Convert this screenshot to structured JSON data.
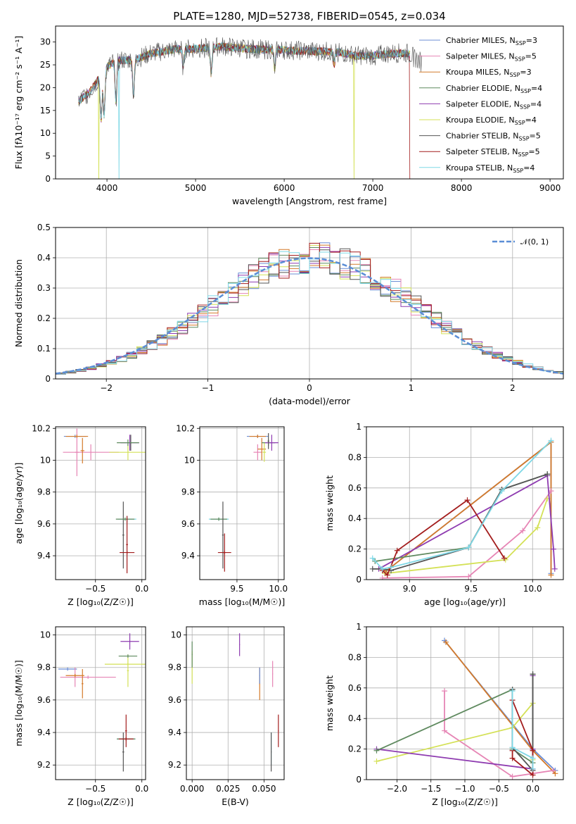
{
  "figure_title": "PLATE=1280, MJD=52738, FIBERID=0545, z=0.034",
  "colors": {
    "chabrier_miles": "#6b8ed6",
    "salpeter_miles": "#e685b5",
    "kroupa_miles": "#d47a2a",
    "chabrier_elodie": "#5f8a5f",
    "salpeter_elodie": "#8e3bb0",
    "kroupa_elodie": "#d4e157",
    "chabrier_stelib": "#555555",
    "salpeter_stelib": "#a31d1d",
    "kroupa_stelib": "#7fd8e6",
    "gaussian": "#5b8ed6"
  },
  "chart_data": [
    {
      "id": "spectrum",
      "type": "line",
      "title": "PLATE=1280, MJD=52738, FIBERID=0545, z=0.034",
      "xlabel": "wavelength [Angstrom, rest frame]",
      "ylabel": "Flux [fλ10⁻¹⁷ erg cm⁻² s⁻¹ A⁻¹]",
      "xlim": [
        3420,
        9150
      ],
      "ylim": [
        0,
        33.5
      ],
      "xticks": [
        4000,
        5000,
        6000,
        7000,
        8000,
        9000
      ],
      "yticks": [
        0,
        5,
        10,
        15,
        20,
        25,
        30
      ],
      "grid": false,
      "legend_position": "top-right",
      "legend": [
        {
          "label": "Chabrier MILES, N",
          "sub": "SSP",
          "suffix": "=3",
          "color": "chabrier_miles"
        },
        {
          "label": "Salpeter MILES, N",
          "sub": "SSP",
          "suffix": "=5",
          "color": "salpeter_miles"
        },
        {
          "label": "Kroupa MILES, N",
          "sub": "SSP",
          "suffix": "=3",
          "color": "kroupa_miles"
        },
        {
          "label": "Chabrier ELODIE, N",
          "sub": "SSP",
          "suffix": "=4",
          "color": "chabrier_elodie"
        },
        {
          "label": "Salpeter ELODIE, N",
          "sub": "SSP",
          "suffix": "=4",
          "color": "salpeter_elodie"
        },
        {
          "label": "Kroupa ELODIE, N",
          "sub": "SSP",
          "suffix": "=4",
          "color": "kroupa_elodie"
        },
        {
          "label": "Chabrier STELIB, N",
          "sub": "SSP",
          "suffix": "=5",
          "color": "chabrier_stelib"
        },
        {
          "label": "Salpeter STELIB, N",
          "sub": "SSP",
          "suffix": "=5",
          "color": "salpeter_stelib"
        },
        {
          "label": "Kroupa STELIB, N",
          "sub": "SSP",
          "suffix": "=4",
          "color": "kroupa_stelib"
        }
      ],
      "continuum": {
        "x": [
          3680,
          3800,
          3950,
          4000,
          4100,
          4300,
          4500,
          4800,
          5000,
          5300,
          5600,
          6000,
          6300,
          6600,
          6800,
          7000,
          7200,
          7400,
          7550
        ],
        "y": [
          17,
          19,
          23,
          24.5,
          26,
          26,
          27.5,
          28.5,
          28.5,
          29,
          28.5,
          28.2,
          28,
          27.8,
          27,
          27,
          27.5,
          27.5,
          25.5
        ]
      },
      "absorption_features": [
        {
          "x": 3934,
          "depth": 0.45
        },
        {
          "x": 3968,
          "depth": 0.4
        },
        {
          "x": 4101,
          "depth": 0.35
        },
        {
          "x": 4300,
          "depth": 0.3
        },
        {
          "x": 4861,
          "depth": 0.15
        },
        {
          "x": 5175,
          "depth": 0.2
        },
        {
          "x": 5893,
          "depth": 0.15
        },
        {
          "x": 6563,
          "depth": 0.1
        }
      ],
      "dropouts": [
        {
          "series": "kroupa_elodie",
          "x": 3910
        },
        {
          "series": "kroupa_stelib",
          "x": 4135
        },
        {
          "series": "kroupa_elodie",
          "x": 6790
        },
        {
          "series": "salpeter_stelib",
          "x": 7420
        }
      ]
    },
    {
      "id": "residuals",
      "type": "bar",
      "xlabel": "(data-model)/error",
      "ylabel": "Normed distribution",
      "xlim": [
        -2.5,
        2.5
      ],
      "ylim": [
        0,
        0.5
      ],
      "xticks": [
        -2,
        -1,
        0,
        1,
        2
      ],
      "yticks": [
        0.0,
        0.1,
        0.2,
        0.3,
        0.4,
        0.5
      ],
      "grid": true,
      "bin_width": 0.1,
      "legend_position": "top-right",
      "legend": [
        {
          "label": "𝒩(0, 1)",
          "color": "gaussian",
          "style": "dashed"
        }
      ],
      "gaussian": {
        "mu": 0,
        "sigma": 1
      }
    },
    {
      "id": "age-vs-Z",
      "type": "scatter",
      "xlabel": "Z [log₁₀(Z/Z☉)]",
      "ylabel": "age  [log₁₀(age/yr)]",
      "xlim": [
        -0.93,
        0.04
      ],
      "ylim": [
        9.25,
        10.21
      ],
      "xticks": [
        -0.5,
        0.0
      ],
      "xticklabels": [
        "−0.5",
        "0.0"
      ],
      "yticks": [
        9.4,
        9.6,
        9.8,
        10.0,
        10.2
      ],
      "grid": true,
      "points": [
        {
          "s": "chabrier_miles",
          "x": -0.72,
          "xerr": 0.12,
          "y": 10.15,
          "yerr": 0.01
        },
        {
          "s": "salpeter_miles",
          "x": -0.55,
          "xerr": 0.3,
          "y": 10.05,
          "yerr": 0.05
        },
        {
          "s": "salpeter_miles",
          "x": -0.7,
          "xerr": 0.02,
          "y": 10.05,
          "yerr": 0.15
        },
        {
          "s": "kroupa_miles",
          "x": -0.7,
          "xerr": 0.12,
          "y": 10.15,
          "yerr": 0.01
        },
        {
          "s": "kroupa_miles",
          "x": -0.64,
          "xerr": 0.02,
          "y": 10.06,
          "yerr": 0.08
        },
        {
          "s": "kroupa_elodie",
          "x": -0.15,
          "xerr": 0.2,
          "y": 10.05,
          "yerr": 0.05
        },
        {
          "s": "salpeter_elodie",
          "x": -0.13,
          "xerr": 0.1,
          "y": 10.11,
          "yerr": 0.05
        },
        {
          "s": "chabrier_stelib",
          "x": -0.12,
          "xerr": 0.01,
          "y": 10.11,
          "yerr": 0.05
        },
        {
          "s": "chabrier_elodie",
          "x": -0.15,
          "xerr": 0.12,
          "y": 10.11,
          "yerr": 0.02
        },
        {
          "s": "kroupa_stelib",
          "x": -0.16,
          "xerr": 0.1,
          "y": 9.63,
          "yerr": 0.02
        },
        {
          "s": "chabrier_stelib",
          "x": -0.2,
          "xerr": 0.01,
          "y": 9.53,
          "yerr": 0.21
        },
        {
          "s": "chabrier_elodie",
          "x": -0.18,
          "xerr": 0.1,
          "y": 9.63,
          "yerr": 0.01
        },
        {
          "s": "salpeter_stelib",
          "x": -0.16,
          "xerr": 0.08,
          "y": 9.42,
          "yerr": 0.01
        },
        {
          "s": "salpeter_stelib",
          "x": -0.16,
          "xerr": 0.01,
          "y": 9.47,
          "yerr": 0.18
        }
      ]
    },
    {
      "id": "age-vs-mass",
      "type": "scatter",
      "xlabel": "mass [log₁₀(M/M☉)]",
      "ylabel": "",
      "xlim": [
        9.05,
        10.07
      ],
      "ylim": [
        9.25,
        10.21
      ],
      "xticks": [
        9.5,
        10.0
      ],
      "xticklabels": [
        "9.5",
        "10.0"
      ],
      "yticks": [
        9.4,
        9.6,
        9.8,
        10.0,
        10.2
      ],
      "grid": true,
      "points": [
        {
          "s": "chabrier_miles",
          "x": 9.75,
          "xerr": 0.13,
          "y": 10.15,
          "yerr": 0.01
        },
        {
          "s": "kroupa_miles",
          "x": 9.75,
          "xerr": 0.1,
          "y": 10.15,
          "yerr": 0.01
        },
        {
          "s": "salpeter_miles",
          "x": 9.75,
          "xerr": 0.05,
          "y": 10.05,
          "yerr": 0.05
        },
        {
          "s": "kroupa_miles",
          "x": 9.8,
          "xerr": 0.05,
          "y": 10.07,
          "yerr": 0.07
        },
        {
          "s": "kroupa_elodie",
          "x": 9.83,
          "xerr": 0.02,
          "y": 10.05,
          "yerr": 0.06
        },
        {
          "s": "chabrier_elodie",
          "x": 9.88,
          "xerr": 0.08,
          "y": 10.11,
          "yerr": 0.02
        },
        {
          "s": "salpeter_elodie",
          "x": 9.92,
          "xerr": 0.08,
          "y": 10.11,
          "yerr": 0.05
        },
        {
          "s": "chabrier_stelib",
          "x": 9.88,
          "xerr": 0.01,
          "y": 10.12,
          "yerr": 0.05
        },
        {
          "s": "kroupa_stelib",
          "x": 9.28,
          "xerr": 0.12,
          "y": 9.63,
          "yerr": 0.01
        },
        {
          "s": "chabrier_elodie",
          "x": 9.28,
          "xerr": 0.1,
          "y": 9.63,
          "yerr": 0.01
        },
        {
          "s": "chabrier_stelib",
          "x": 9.33,
          "xerr": 0.01,
          "y": 9.53,
          "yerr": 0.21
        },
        {
          "s": "salpeter_stelib",
          "x": 9.35,
          "xerr": 0.08,
          "y": 9.42,
          "yerr": 0.01
        },
        {
          "s": "salpeter_stelib",
          "x": 9.35,
          "xerr": 0.01,
          "y": 9.42,
          "yerr": 0.12
        }
      ]
    },
    {
      "id": "weight-vs-age",
      "type": "line",
      "xlabel": "age  [log₁₀(age/yr)]",
      "ylabel": "mass weight",
      "xlim": [
        8.65,
        10.25
      ],
      "ylim": [
        0,
        1
      ],
      "xticks": [
        9.0,
        9.5,
        10.0
      ],
      "xticklabels": [
        "9.0",
        "9.5",
        "10.0"
      ],
      "yticks": [
        0.0,
        0.2,
        0.4,
        0.6,
        0.8,
        1.0
      ],
      "grid": true,
      "series": [
        {
          "s": "chabrier_miles",
          "x": [
            8.8,
            10.15,
            10.15
          ],
          "y": [
            0.05,
            0.9,
            0.04
          ]
        },
        {
          "s": "kroupa_miles",
          "x": [
            8.8,
            10.15,
            10.15
          ],
          "y": [
            0.05,
            0.9,
            0.03
          ]
        },
        {
          "s": "salpeter_miles",
          "x": [
            8.78,
            9.48,
            9.92,
            10.15
          ],
          "y": [
            0.01,
            0.02,
            0.32,
            0.58
          ]
        },
        {
          "s": "kroupa_elodie",
          "x": [
            8.8,
            9.78,
            10.04,
            10.12
          ],
          "y": [
            0.04,
            0.13,
            0.34,
            0.53
          ]
        },
        {
          "s": "salpeter_elodie",
          "x": [
            8.75,
            10.12,
            10.17,
            10.18
          ],
          "y": [
            0.07,
            0.68,
            0.2,
            0.07
          ]
        },
        {
          "s": "chabrier_elodie",
          "x": [
            8.72,
            9.48,
            9.75,
            10.12
          ],
          "y": [
            0.12,
            0.21,
            0.59,
            0.69
          ]
        },
        {
          "s": "chabrier_stelib",
          "x": [
            8.7,
            8.78,
            8.85,
            9.48,
            9.75,
            10.12
          ],
          "y": [
            0.07,
            0.07,
            0.06,
            0.21,
            0.59,
            0.69
          ]
        },
        {
          "s": "salpeter_stelib",
          "x": [
            8.78,
            8.82,
            8.9,
            9.47,
            9.77
          ],
          "y": [
            0.06,
            0.03,
            0.19,
            0.52,
            0.14
          ]
        },
        {
          "s": "kroupa_stelib",
          "x": [
            8.7,
            8.78,
            8.85,
            9.48,
            9.75,
            10.15
          ],
          "y": [
            0.14,
            0.07,
            0.08,
            0.21,
            0.58,
            0.91
          ]
        }
      ]
    },
    {
      "id": "mass-vs-Z",
      "type": "scatter",
      "xlabel": "Z [log₁₀(Z/Z☉)]",
      "ylabel": "mass [log₁₀(M/M☉)]",
      "xlim": [
        -0.93,
        0.04
      ],
      "ylim": [
        9.11,
        10.05
      ],
      "xticks": [
        -0.5,
        0.0
      ],
      "xticklabels": [
        "−0.5",
        "0.0"
      ],
      "yticks": [
        9.2,
        9.4,
        9.6,
        9.8,
        10.0
      ],
      "grid": true,
      "points": [
        {
          "s": "chabrier_miles",
          "x": -0.8,
          "xerr": 0.1,
          "y": 9.79,
          "yerr": 0.01
        },
        {
          "s": "salpeter_miles",
          "x": -0.58,
          "xerr": 0.3,
          "y": 9.74,
          "yerr": 0.01
        },
        {
          "s": "salpeter_miles",
          "x": -0.72,
          "xerr": 0.01,
          "y": 9.74,
          "yerr": 0.06
        },
        {
          "s": "kroupa_miles",
          "x": -0.72,
          "xerr": 0.1,
          "y": 9.75,
          "yerr": 0.01
        },
        {
          "s": "kroupa_miles",
          "x": -0.64,
          "xerr": 0.01,
          "y": 9.7,
          "yerr": 0.09
        },
        {
          "s": "kroupa_elodie",
          "x": -0.15,
          "xerr": 0.25,
          "y": 9.82,
          "yerr": 0.01
        },
        {
          "s": "kroupa_elodie",
          "x": -0.15,
          "xerr": 0.01,
          "y": 9.78,
          "yerr": 0.1
        },
        {
          "s": "salpeter_elodie",
          "x": -0.13,
          "xerr": 0.1,
          "y": 9.96,
          "yerr": 0.05
        },
        {
          "s": "chabrier_elodie",
          "x": -0.15,
          "xerr": 0.1,
          "y": 9.87,
          "yerr": 0.01
        },
        {
          "s": "kroupa_stelib",
          "x": -0.17,
          "xerr": 0.1,
          "y": 9.36,
          "yerr": 0.01
        },
        {
          "s": "chabrier_stelib",
          "x": -0.2,
          "xerr": 0.01,
          "y": 9.28,
          "yerr": 0.12
        },
        {
          "s": "chabrier_elodie",
          "x": -0.17,
          "xerr": 0.1,
          "y": 9.36,
          "yerr": 0.01
        },
        {
          "s": "salpeter_stelib",
          "x": -0.17,
          "xerr": 0.08,
          "y": 9.36,
          "yerr": 0.01
        },
        {
          "s": "salpeter_stelib",
          "x": -0.17,
          "xerr": 0.01,
          "y": 9.41,
          "yerr": 0.1
        }
      ]
    },
    {
      "id": "mass-vs-ebv",
      "type": "scatter",
      "xlabel": "E(B-V)",
      "ylabel": "",
      "xlim": [
        -0.004,
        0.064
      ],
      "ylim": [
        9.11,
        10.05
      ],
      "xticks": [
        0.0,
        0.025,
        0.05
      ],
      "xticklabels": [
        "0.000",
        "0.025",
        "0.050"
      ],
      "yticks": [
        9.2,
        9.4,
        9.6,
        9.8,
        10.0
      ],
      "grid": true,
      "points": [
        {
          "s": "kroupa_elodie",
          "x": 0.0,
          "xerr": 0.0003,
          "y": 9.8,
          "yerr": 0.1
        },
        {
          "s": "chabrier_elodie",
          "x": 0.0,
          "xerr": 0.0003,
          "y": 9.88,
          "yerr": 0.08
        },
        {
          "s": "salpeter_elodie",
          "x": 0.033,
          "xerr": 0.0003,
          "y": 9.94,
          "yerr": 0.07
        },
        {
          "s": "kroupa_miles",
          "x": 0.047,
          "xerr": 0.0003,
          "y": 9.7,
          "yerr": 0.1
        },
        {
          "s": "chabrier_miles",
          "x": 0.047,
          "xerr": 0.0003,
          "y": 9.75,
          "yerr": 0.05
        },
        {
          "s": "salpeter_miles",
          "x": 0.056,
          "xerr": 0.0003,
          "y": 9.76,
          "yerr": 0.08
        },
        {
          "s": "kroupa_stelib",
          "x": 0.055,
          "xerr": 0.0003,
          "y": 9.3,
          "yerr": 0.1
        },
        {
          "s": "chabrier_stelib",
          "x": 0.055,
          "xerr": 0.0003,
          "y": 9.28,
          "yerr": 0.12
        },
        {
          "s": "salpeter_stelib",
          "x": 0.06,
          "xerr": 0.0003,
          "y": 9.41,
          "yerr": 0.1
        }
      ]
    },
    {
      "id": "weight-vs-Z",
      "type": "line",
      "xlabel": "Z [log₁₀(Z/Z☉)]",
      "ylabel": "mass weight",
      "xlim": [
        -2.45,
        0.45
      ],
      "ylim": [
        0,
        1
      ],
      "xticks": [
        -2.0,
        -1.5,
        -1.0,
        -0.5,
        0.0
      ],
      "xticklabels": [
        "−2.0",
        "−1.5",
        "−1.0",
        "−0.5",
        "0.0"
      ],
      "yticks": [
        0.0,
        0.2,
        0.4,
        0.6,
        0.8,
        1.0
      ],
      "grid": true,
      "series": [
        {
          "s": "chabrier_miles",
          "x": [
            -1.3,
            0.0,
            0.33
          ],
          "y": [
            0.91,
            0.2,
            0.06
          ]
        },
        {
          "s": "kroupa_miles",
          "x": [
            -1.28,
            0.0,
            0.33
          ],
          "y": [
            0.9,
            0.19,
            0.04
          ]
        },
        {
          "s": "salpeter_miles",
          "x": [
            -1.3,
            -1.3,
            -0.3,
            0.3
          ],
          "y": [
            0.58,
            0.32,
            0.02,
            0.06
          ]
        },
        {
          "s": "kroupa_elodie",
          "x": [
            -2.3,
            -0.3,
            0.0,
            0.0
          ],
          "y": [
            0.12,
            0.34,
            0.5,
            0.13
          ]
        },
        {
          "s": "salpeter_elodie",
          "x": [
            -2.3,
            0.0,
            0.0,
            0.0
          ],
          "y": [
            0.2,
            0.07,
            0.68,
            0.2
          ]
        },
        {
          "s": "chabrier_elodie",
          "x": [
            -2.3,
            -0.3,
            -0.3,
            0.0,
            0.0
          ],
          "y": [
            0.19,
            0.59,
            0.2,
            0.11,
            0.69
          ]
        },
        {
          "s": "chabrier_stelib",
          "x": [
            -0.3,
            -0.3,
            0.0,
            0.0
          ],
          "y": [
            0.59,
            0.21,
            0.06,
            0.69
          ]
        },
        {
          "s": "salpeter_stelib",
          "x": [
            -0.3,
            0.0,
            0.0,
            -0.3,
            -0.3
          ],
          "y": [
            0.52,
            0.19,
            0.03,
            0.14,
            0.19
          ]
        },
        {
          "s": "kroupa_stelib",
          "x": [
            -0.3,
            -0.3,
            0.0,
            0.0
          ],
          "y": [
            0.58,
            0.21,
            0.14,
            0.07
          ]
        }
      ]
    }
  ]
}
